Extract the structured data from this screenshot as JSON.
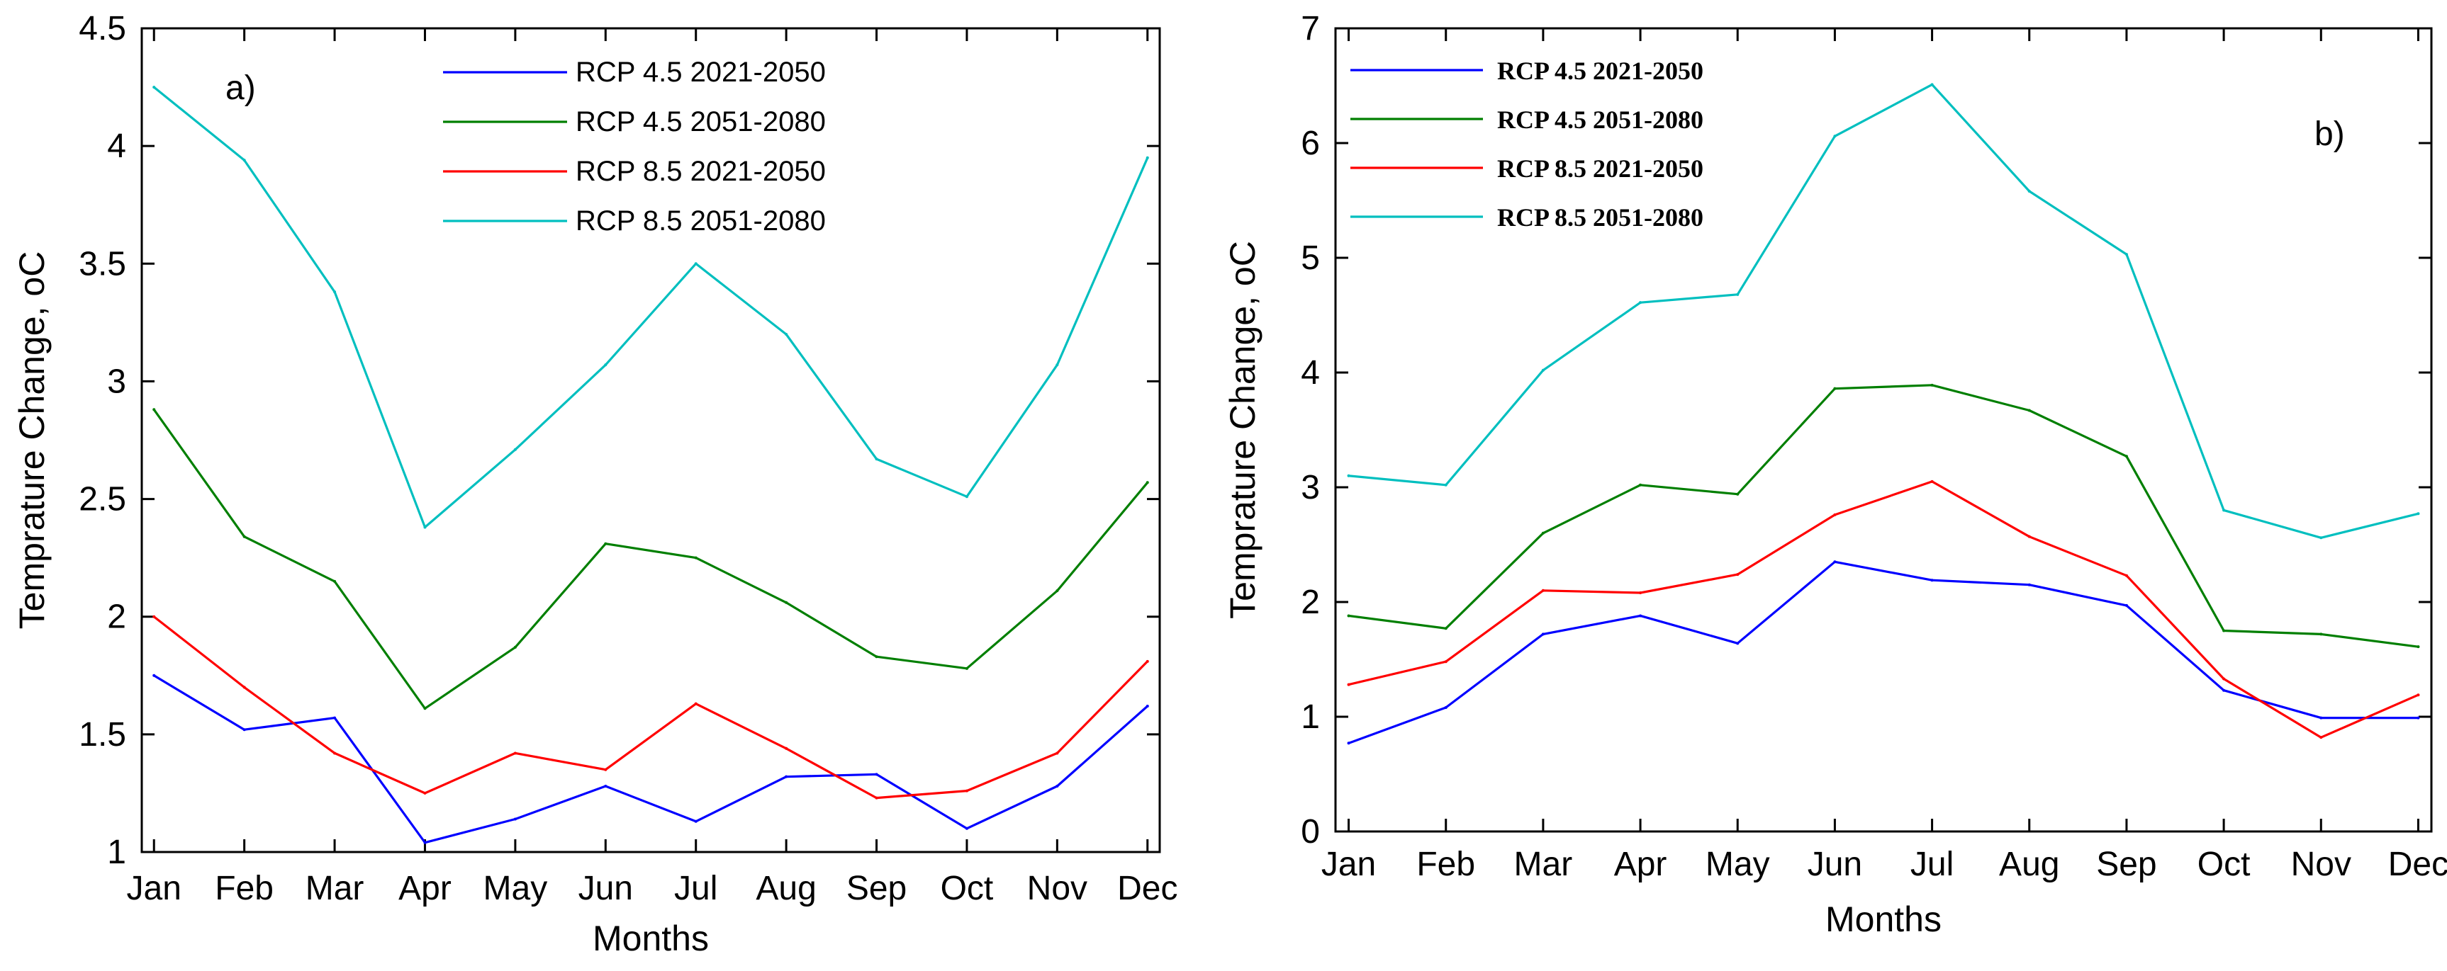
{
  "chart_data": [
    {
      "type": "line",
      "panel_label": "a)",
      "xlabel": "Months",
      "ylabel": "Temprature Change, oC",
      "categories": [
        "Jan",
        "Feb",
        "Mar",
        "Apr",
        "May",
        "Jun",
        "Jul",
        "Aug",
        "Sep",
        "Oct",
        "Nov",
        "Dec"
      ],
      "ylim": [
        1,
        4.5
      ],
      "yticks": [
        "1",
        "1.5",
        "2",
        "2.5",
        "3",
        "3.5",
        "4",
        "4.5"
      ],
      "legend_position": "top-center",
      "series": [
        {
          "name": "RCP 4.5 2021-2050",
          "color": "#0000ff",
          "values": [
            1.75,
            1.52,
            1.57,
            1.04,
            1.14,
            1.28,
            1.13,
            1.32,
            1.33,
            1.1,
            1.28,
            1.62
          ]
        },
        {
          "name": "RCP 4.5 2051-2080",
          "color": "#007f00",
          "values": [
            2.88,
            2.34,
            2.15,
            1.61,
            1.87,
            2.31,
            2.25,
            2.06,
            1.83,
            1.78,
            2.11,
            2.57
          ]
        },
        {
          "name": "RCP 8.5 2021-2050",
          "color": "#ff0000",
          "values": [
            2.0,
            1.7,
            1.42,
            1.25,
            1.42,
            1.35,
            1.63,
            1.44,
            1.23,
            1.26,
            1.42,
            1.81
          ]
        },
        {
          "name": "RCP 8.5 2051-2080",
          "color": "#00bfbf",
          "values": [
            4.25,
            3.94,
            3.38,
            2.38,
            2.71,
            3.07,
            3.5,
            3.2,
            2.67,
            2.51,
            3.07,
            3.95
          ]
        }
      ]
    },
    {
      "type": "line",
      "panel_label": "b)",
      "xlabel": "Months",
      "ylabel": "Temprature Change, oC",
      "categories": [
        "Jan",
        "Feb",
        "Mar",
        "Apr",
        "May",
        "Jun",
        "Jul",
        "Aug",
        "Sep",
        "Oct",
        "Nov",
        "Dec"
      ],
      "ylim": [
        0,
        7
      ],
      "yticks": [
        "0",
        "1",
        "2",
        "3",
        "4",
        "5",
        "6",
        "7"
      ],
      "legend_position": "top-left",
      "series": [
        {
          "name": "RCP 4.5 2021-2050",
          "color": "#0000ff",
          "values": [
            0.77,
            1.08,
            1.72,
            1.88,
            1.64,
            2.35,
            2.19,
            2.15,
            1.97,
            1.23,
            0.99,
            0.99
          ]
        },
        {
          "name": "RCP 4.5 2051-2080",
          "color": "#007f00",
          "values": [
            1.88,
            1.77,
            2.6,
            3.02,
            2.94,
            3.86,
            3.89,
            3.67,
            3.27,
            1.75,
            1.72,
            1.61
          ]
        },
        {
          "name": "RCP 8.5 2021-2050",
          "color": "#ff0000",
          "values": [
            1.28,
            1.48,
            2.1,
            2.08,
            2.24,
            2.76,
            3.05,
            2.57,
            2.23,
            1.33,
            0.82,
            1.19
          ]
        },
        {
          "name": "RCP 8.5 2051-2080",
          "color": "#00bfbf",
          "values": [
            3.1,
            3.02,
            4.02,
            4.61,
            4.68,
            6.06,
            6.51,
            5.58,
            5.03,
            2.8,
            2.56,
            2.77
          ]
        }
      ]
    }
  ]
}
